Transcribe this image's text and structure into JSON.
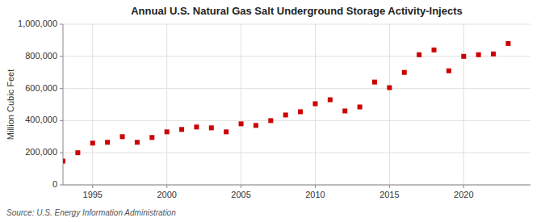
{
  "chart_data": {
    "type": "scatter",
    "title": "Annual U.S. Natural Gas Salt Underground Storage Activity-Injects",
    "ylabel": "Million Cubic Feet",
    "source": "Source: U.S. Energy Information Administration",
    "x": [
      1993,
      1994,
      1995,
      1996,
      1997,
      1998,
      1999,
      2000,
      2001,
      2002,
      2003,
      2004,
      2005,
      2006,
      2007,
      2008,
      2009,
      2010,
      2011,
      2012,
      2013,
      2014,
      2015,
      2016,
      2017,
      2018,
      2019,
      2020,
      2021,
      2022,
      2023
    ],
    "values": [
      148000,
      200000,
      260000,
      265000,
      300000,
      265000,
      295000,
      330000,
      345000,
      360000,
      355000,
      330000,
      380000,
      370000,
      400000,
      435000,
      455000,
      505000,
      530000,
      460000,
      485000,
      640000,
      605000,
      700000,
      810000,
      840000,
      710000,
      800000,
      810000,
      815000,
      880000
    ],
    "color": "#CC0000",
    "marker": "square",
    "xlim": [
      1993.0,
      2024.5
    ],
    "xticks": [
      1995,
      2000,
      2005,
      2010,
      2015,
      2020
    ],
    "ylim": [
      0,
      1000000
    ],
    "yticks": [
      0,
      {
        "value": 200000,
        "label": "200,000"
      },
      {
        "value": 400000,
        "label": "400,000"
      },
      {
        "value": 600000,
        "label": "600,000"
      },
      {
        "value": 800000,
        "label": "800,000"
      },
      {
        "value": 1000000,
        "label": "1,000,000"
      }
    ],
    "grid": true
  }
}
